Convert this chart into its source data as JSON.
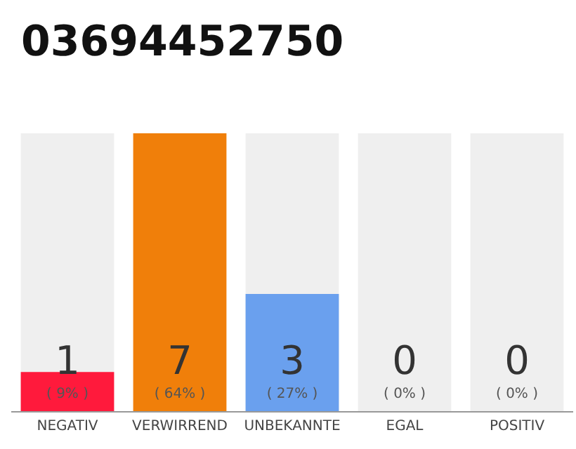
{
  "chart_data": {
    "type": "bar",
    "title": "03694452750",
    "categories": [
      "NEGATIV",
      "VERWIRREND",
      "UNBEKANNTE",
      "EGAL",
      "POSITIV"
    ],
    "series": [
      {
        "color": "#efefef",
        "values": [
          64,
          null,
          64,
          64,
          64
        ]
      },
      {
        "colors": [
          "#ff1a3c",
          "#f07f0a",
          "#6aa0ee",
          null,
          null
        ],
        "values": [
          9,
          64,
          27,
          0,
          0
        ],
        "value_labels": [
          "( 9% )",
          "( 64% )",
          "( 27% )",
          "( 0% )",
          "( 0% )"
        ]
      }
    ],
    "annotations": [
      "1",
      "7",
      "3",
      "0",
      "0"
    ]
  }
}
